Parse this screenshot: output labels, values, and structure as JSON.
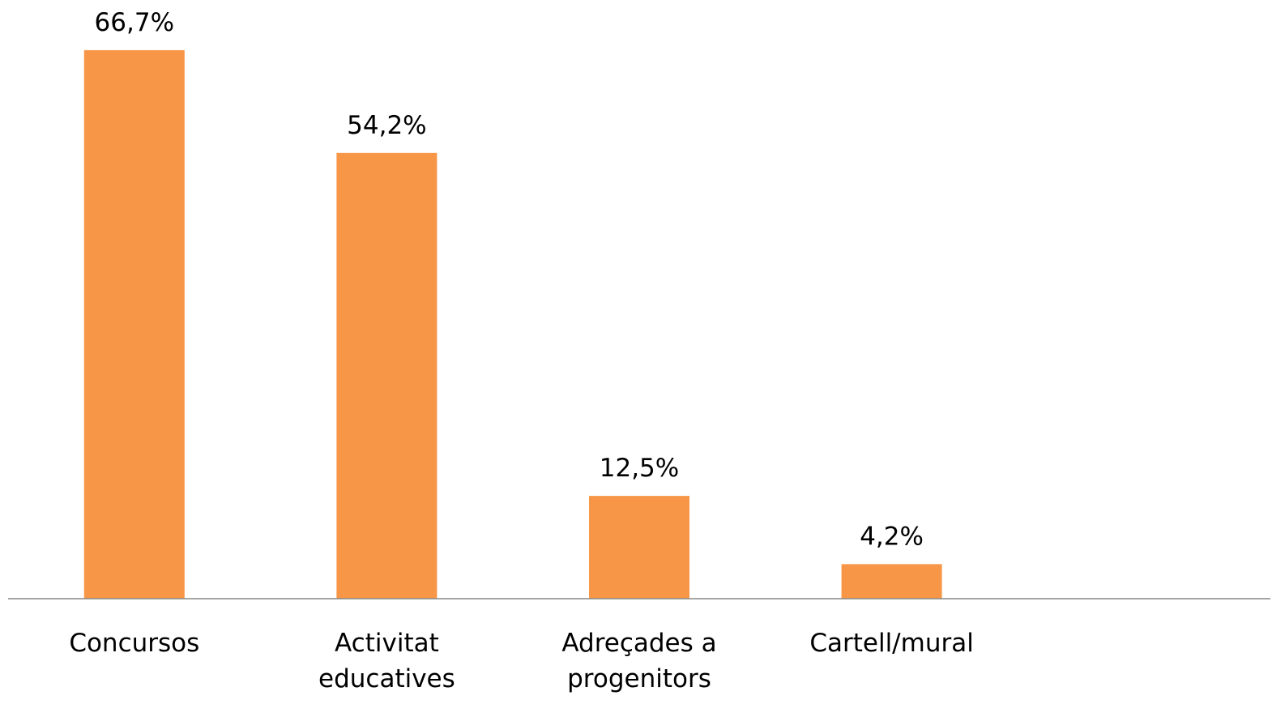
{
  "chart_data": {
    "type": "bar",
    "categories": [
      "Concursos",
      "Activitat educatives",
      "Adreçades a progenitors",
      "Cartell/mural",
      null
    ],
    "values": [
      66.7,
      54.2,
      12.5,
      4.2,
      null
    ],
    "value_labels": [
      "66,7%",
      "54,2%",
      "12,5%",
      "4,2%",
      null
    ],
    "color": "#f79646",
    "ylim": [
      0,
      72.8
    ]
  }
}
